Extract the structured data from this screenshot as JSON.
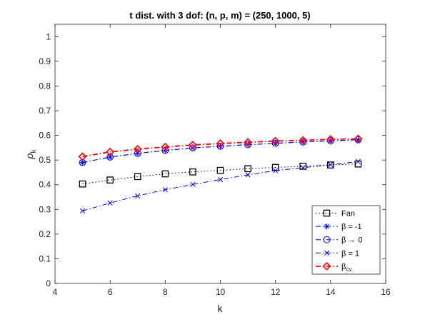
{
  "chart_data": {
    "type": "line",
    "title": "t dist. with 3 dof: (n, p, m) = (250, 1000, 5)",
    "xlabel": "k",
    "ylabel": "ρ",
    "ylabel_subscript": "k",
    "xlim": [
      4,
      16
    ],
    "ylim": [
      0,
      1.05
    ],
    "xticks": [
      4,
      6,
      8,
      10,
      12,
      14,
      16
    ],
    "yticks": [
      0,
      0.1,
      0.2,
      0.3,
      0.4,
      0.5,
      0.6,
      0.7,
      0.8,
      0.9,
      1
    ],
    "ytick_labels": [
      "0",
      "0.1",
      "0.2",
      "0.3",
      "0.4",
      "0.5",
      "0.6",
      "0.7",
      "0.8",
      "0.9",
      "1"
    ],
    "xtick_labels": [
      "4",
      "6",
      "8",
      "10",
      "12",
      "14",
      "16"
    ],
    "grid": false,
    "legend_position": "bottom-right",
    "x": [
      5,
      6,
      7,
      8,
      9,
      10,
      11,
      12,
      13,
      14,
      15
    ],
    "series": [
      {
        "name": "Fan",
        "color": "#000000",
        "dash": "dotted",
        "marker": "square",
        "values": [
          0.403,
          0.419,
          0.433,
          0.444,
          0.452,
          0.458,
          0.465,
          0.47,
          0.475,
          0.48,
          0.484
        ]
      },
      {
        "name": "β = -1",
        "color": "#0000ff",
        "dash": "dashdot",
        "marker": "asterisk",
        "values": [
          0.49,
          0.512,
          0.527,
          0.539,
          0.549,
          0.556,
          0.562,
          0.568,
          0.573,
          0.578,
          0.582
        ]
      },
      {
        "name": "β → 0",
        "color": "#0000ff",
        "dash": "dashdot",
        "marker": "circle",
        "values": [
          0.49,
          0.512,
          0.527,
          0.539,
          0.549,
          0.556,
          0.562,
          0.568,
          0.573,
          0.578,
          0.582
        ]
      },
      {
        "name": "β = 1",
        "color": "#0000ff",
        "dash": "dashdot",
        "marker": "x",
        "values": [
          0.294,
          0.326,
          0.355,
          0.38,
          0.401,
          0.421,
          0.44,
          0.457,
          0.469,
          0.481,
          0.494
        ]
      },
      {
        "name": "β",
        "name_subscript": "cv",
        "color": "#ff0000",
        "dash": "dashdot",
        "marker": "diamond",
        "values": [
          0.514,
          0.533,
          0.544,
          0.553,
          0.561,
          0.567,
          0.572,
          0.577,
          0.58,
          0.584,
          0.586
        ]
      }
    ]
  }
}
